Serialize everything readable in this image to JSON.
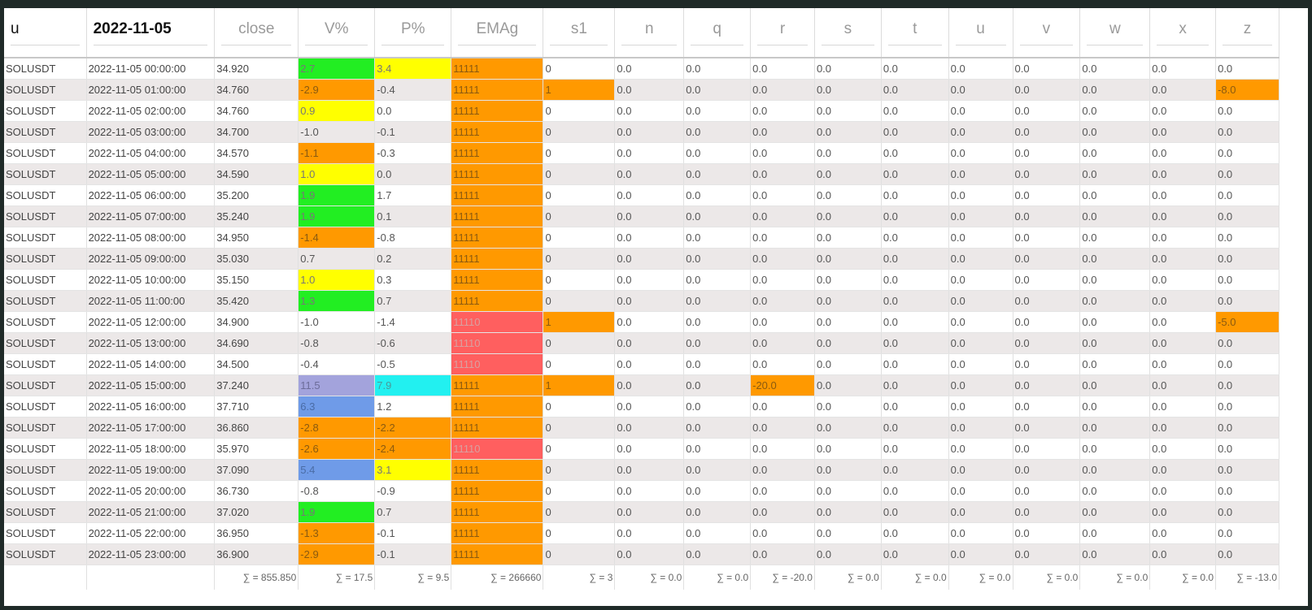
{
  "colors": {
    "green": "#22ee22",
    "yellow": "#ffff00",
    "orange": "#ff9900",
    "red": "#ff5f5f",
    "purple": "#a3a3dc",
    "blue": "#6f9be8",
    "cyan": "#22f0f0",
    "row_stripe": "#ece8e8"
  },
  "headers": [
    "u",
    "2022-11-05",
    "close",
    "V%",
    "P%",
    "EMAg",
    "s1",
    "n",
    "q",
    "r",
    "s",
    "t",
    "u",
    "v",
    "w",
    "x",
    "z"
  ],
  "rows": [
    {
      "cells": [
        "SOLUSDT",
        "2022-11-05 00:00:00",
        "34.920",
        "2.7",
        "3.4",
        "11111",
        "0",
        "0.0",
        "0.0",
        "0.0",
        "0.0",
        "0.0",
        "0.0",
        "0.0",
        "0.0",
        "0.0",
        "0.0"
      ],
      "hl": {
        "3": "green",
        "4": "yellow",
        "5": "orange"
      }
    },
    {
      "cells": [
        "SOLUSDT",
        "2022-11-05 01:00:00",
        "34.760",
        "-2.9",
        "-0.4",
        "11111",
        "1",
        "0.0",
        "0.0",
        "0.0",
        "0.0",
        "0.0",
        "0.0",
        "0.0",
        "0.0",
        "0.0",
        "-8.0"
      ],
      "hl": {
        "3": "orange",
        "5": "orange",
        "6": "orange",
        "16": "orange"
      }
    },
    {
      "cells": [
        "SOLUSDT",
        "2022-11-05 02:00:00",
        "34.760",
        "0.9",
        "0.0",
        "11111",
        "0",
        "0.0",
        "0.0",
        "0.0",
        "0.0",
        "0.0",
        "0.0",
        "0.0",
        "0.0",
        "0.0",
        "0.0"
      ],
      "hl": {
        "3": "yellow",
        "5": "orange"
      }
    },
    {
      "cells": [
        "SOLUSDT",
        "2022-11-05 03:00:00",
        "34.700",
        "-1.0",
        "-0.1",
        "11111",
        "0",
        "0.0",
        "0.0",
        "0.0",
        "0.0",
        "0.0",
        "0.0",
        "0.0",
        "0.0",
        "0.0",
        "0.0"
      ],
      "hl": {
        "5": "orange"
      }
    },
    {
      "cells": [
        "SOLUSDT",
        "2022-11-05 04:00:00",
        "34.570",
        "-1.1",
        "-0.3",
        "11111",
        "0",
        "0.0",
        "0.0",
        "0.0",
        "0.0",
        "0.0",
        "0.0",
        "0.0",
        "0.0",
        "0.0",
        "0.0"
      ],
      "hl": {
        "3": "orange",
        "5": "orange"
      }
    },
    {
      "cells": [
        "SOLUSDT",
        "2022-11-05 05:00:00",
        "34.590",
        "1.0",
        "0.0",
        "11111",
        "0",
        "0.0",
        "0.0",
        "0.0",
        "0.0",
        "0.0",
        "0.0",
        "0.0",
        "0.0",
        "0.0",
        "0.0"
      ],
      "hl": {
        "3": "yellow",
        "5": "orange"
      }
    },
    {
      "cells": [
        "SOLUSDT",
        "2022-11-05 06:00:00",
        "35.200",
        "1.9",
        "1.7",
        "11111",
        "0",
        "0.0",
        "0.0",
        "0.0",
        "0.0",
        "0.0",
        "0.0",
        "0.0",
        "0.0",
        "0.0",
        "0.0"
      ],
      "hl": {
        "3": "green",
        "5": "orange"
      }
    },
    {
      "cells": [
        "SOLUSDT",
        "2022-11-05 07:00:00",
        "35.240",
        "1.9",
        "0.1",
        "11111",
        "0",
        "0.0",
        "0.0",
        "0.0",
        "0.0",
        "0.0",
        "0.0",
        "0.0",
        "0.0",
        "0.0",
        "0.0"
      ],
      "hl": {
        "3": "green",
        "5": "orange"
      }
    },
    {
      "cells": [
        "SOLUSDT",
        "2022-11-05 08:00:00",
        "34.950",
        "-1.4",
        "-0.8",
        "11111",
        "0",
        "0.0",
        "0.0",
        "0.0",
        "0.0",
        "0.0",
        "0.0",
        "0.0",
        "0.0",
        "0.0",
        "0.0"
      ],
      "hl": {
        "3": "orange",
        "5": "orange"
      }
    },
    {
      "cells": [
        "SOLUSDT",
        "2022-11-05 09:00:00",
        "35.030",
        "0.7",
        "0.2",
        "11111",
        "0",
        "0.0",
        "0.0",
        "0.0",
        "0.0",
        "0.0",
        "0.0",
        "0.0",
        "0.0",
        "0.0",
        "0.0"
      ],
      "hl": {
        "5": "orange"
      }
    },
    {
      "cells": [
        "SOLUSDT",
        "2022-11-05 10:00:00",
        "35.150",
        "1.0",
        "0.3",
        "11111",
        "0",
        "0.0",
        "0.0",
        "0.0",
        "0.0",
        "0.0",
        "0.0",
        "0.0",
        "0.0",
        "0.0",
        "0.0"
      ],
      "hl": {
        "3": "yellow",
        "5": "orange"
      }
    },
    {
      "cells": [
        "SOLUSDT",
        "2022-11-05 11:00:00",
        "35.420",
        "1.3",
        "0.7",
        "11111",
        "0",
        "0.0",
        "0.0",
        "0.0",
        "0.0",
        "0.0",
        "0.0",
        "0.0",
        "0.0",
        "0.0",
        "0.0"
      ],
      "hl": {
        "3": "green",
        "5": "orange"
      }
    },
    {
      "cells": [
        "SOLUSDT",
        "2022-11-05 12:00:00",
        "34.900",
        "-1.0",
        "-1.4",
        "11110",
        "1",
        "0.0",
        "0.0",
        "0.0",
        "0.0",
        "0.0",
        "0.0",
        "0.0",
        "0.0",
        "0.0",
        "-5.0"
      ],
      "hl": {
        "5": "red",
        "6": "orange",
        "16": "orange"
      }
    },
    {
      "cells": [
        "SOLUSDT",
        "2022-11-05 13:00:00",
        "34.690",
        "-0.8",
        "-0.6",
        "11110",
        "0",
        "0.0",
        "0.0",
        "0.0",
        "0.0",
        "0.0",
        "0.0",
        "0.0",
        "0.0",
        "0.0",
        "0.0"
      ],
      "hl": {
        "5": "red"
      }
    },
    {
      "cells": [
        "SOLUSDT",
        "2022-11-05 14:00:00",
        "34.500",
        "-0.4",
        "-0.5",
        "11110",
        "0",
        "0.0",
        "0.0",
        "0.0",
        "0.0",
        "0.0",
        "0.0",
        "0.0",
        "0.0",
        "0.0",
        "0.0"
      ],
      "hl": {
        "5": "red"
      }
    },
    {
      "cells": [
        "SOLUSDT",
        "2022-11-05 15:00:00",
        "37.240",
        "11.5",
        "7.9",
        "11111",
        "1",
        "0.0",
        "0.0",
        "-20.0",
        "0.0",
        "0.0",
        "0.0",
        "0.0",
        "0.0",
        "0.0",
        "0.0"
      ],
      "hl": {
        "3": "purple",
        "4": "cyan",
        "5": "orange",
        "6": "orange",
        "9": "orange"
      }
    },
    {
      "cells": [
        "SOLUSDT",
        "2022-11-05 16:00:00",
        "37.710",
        "6.3",
        "1.2",
        "11111",
        "0",
        "0.0",
        "0.0",
        "0.0",
        "0.0",
        "0.0",
        "0.0",
        "0.0",
        "0.0",
        "0.0",
        "0.0"
      ],
      "hl": {
        "3": "blue",
        "5": "orange"
      }
    },
    {
      "cells": [
        "SOLUSDT",
        "2022-11-05 17:00:00",
        "36.860",
        "-2.8",
        "-2.2",
        "11111",
        "0",
        "0.0",
        "0.0",
        "0.0",
        "0.0",
        "0.0",
        "0.0",
        "0.0",
        "0.0",
        "0.0",
        "0.0"
      ],
      "hl": {
        "3": "orange",
        "4": "orange",
        "5": "orange"
      }
    },
    {
      "cells": [
        "SOLUSDT",
        "2022-11-05 18:00:00",
        "35.970",
        "-2.6",
        "-2.4",
        "11110",
        "0",
        "0.0",
        "0.0",
        "0.0",
        "0.0",
        "0.0",
        "0.0",
        "0.0",
        "0.0",
        "0.0",
        "0.0"
      ],
      "hl": {
        "3": "orange",
        "4": "orange",
        "5": "red"
      }
    },
    {
      "cells": [
        "SOLUSDT",
        "2022-11-05 19:00:00",
        "37.090",
        "5.4",
        "3.1",
        "11111",
        "0",
        "0.0",
        "0.0",
        "0.0",
        "0.0",
        "0.0",
        "0.0",
        "0.0",
        "0.0",
        "0.0",
        "0.0"
      ],
      "hl": {
        "3": "blue",
        "4": "yellow",
        "5": "orange"
      }
    },
    {
      "cells": [
        "SOLUSDT",
        "2022-11-05 20:00:00",
        "36.730",
        "-0.8",
        "-0.9",
        "11111",
        "0",
        "0.0",
        "0.0",
        "0.0",
        "0.0",
        "0.0",
        "0.0",
        "0.0",
        "0.0",
        "0.0",
        "0.0"
      ],
      "hl": {
        "5": "orange"
      }
    },
    {
      "cells": [
        "SOLUSDT",
        "2022-11-05 21:00:00",
        "37.020",
        "1.9",
        "0.7",
        "11111",
        "0",
        "0.0",
        "0.0",
        "0.0",
        "0.0",
        "0.0",
        "0.0",
        "0.0",
        "0.0",
        "0.0",
        "0.0"
      ],
      "hl": {
        "3": "green",
        "5": "orange"
      }
    },
    {
      "cells": [
        "SOLUSDT",
        "2022-11-05 22:00:00",
        "36.950",
        "-1.3",
        "-0.1",
        "11111",
        "0",
        "0.0",
        "0.0",
        "0.0",
        "0.0",
        "0.0",
        "0.0",
        "0.0",
        "0.0",
        "0.0",
        "0.0"
      ],
      "hl": {
        "3": "orange",
        "5": "orange"
      }
    },
    {
      "cells": [
        "SOLUSDT",
        "2022-11-05 23:00:00",
        "36.900",
        "-2.9",
        "-0.1",
        "11111",
        "0",
        "0.0",
        "0.0",
        "0.0",
        "0.0",
        "0.0",
        "0.0",
        "0.0",
        "0.0",
        "0.0",
        "0.0"
      ],
      "hl": {
        "3": "orange",
        "5": "orange"
      }
    }
  ],
  "footer": [
    "",
    "",
    "∑ = 855.850",
    "∑ = 17.5",
    "∑ = 9.5",
    "∑ = 266660",
    "∑ = 3",
    "∑ = 0.0",
    "∑ = 0.0",
    "∑ = -20.0",
    "∑ = 0.0",
    "∑ = 0.0",
    "∑ = 0.0",
    "∑ = 0.0",
    "∑ = 0.0",
    "∑ = 0.0",
    "∑ = -13.0"
  ]
}
